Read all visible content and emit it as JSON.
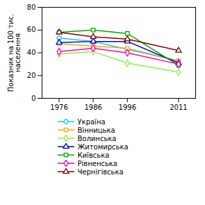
{
  "chart_data": {
    "type": "line",
    "x": [
      1976,
      1986,
      1996,
      2011
    ],
    "series": [
      {
        "name": "Україна",
        "color": "#00CCFF",
        "marker": "circle",
        "values": [
          53,
          50,
          43,
          33
        ]
      },
      {
        "name": "Вінницька",
        "color": "#FFA500",
        "marker": "square",
        "values": [
          48,
          46,
          44,
          33
        ]
      },
      {
        "name": "Волинська",
        "color": "#90EE40",
        "marker": "diamond",
        "values": [
          39,
          41,
          31,
          23
        ]
      },
      {
        "name": "Житомирська",
        "color": "#0000CC",
        "marker": "triangle",
        "values": [
          49,
          50,
          50,
          31
        ]
      },
      {
        "name": "Київська",
        "color": "#00AA00",
        "marker": "square",
        "values": [
          58,
          60,
          57,
          29
        ]
      },
      {
        "name": "Рівненська",
        "color": "#FF00AA",
        "marker": "diamond",
        "values": [
          41,
          44,
          40,
          30
        ]
      },
      {
        "name": "Чернігівська",
        "color": "#880000",
        "marker": "triangle",
        "values": [
          58,
          54,
          52,
          42
        ]
      }
    ],
    "xlim": [
      1971,
      2016
    ],
    "xticks": [
      1976,
      1986,
      1996,
      2011
    ],
    "ylim": [
      0,
      80
    ],
    "yticks": [
      0,
      20,
      40,
      60,
      80
    ],
    "ylabel": "Показник на 100 тис.\nнаселення",
    "grid": false,
    "legend": "bottom"
  }
}
